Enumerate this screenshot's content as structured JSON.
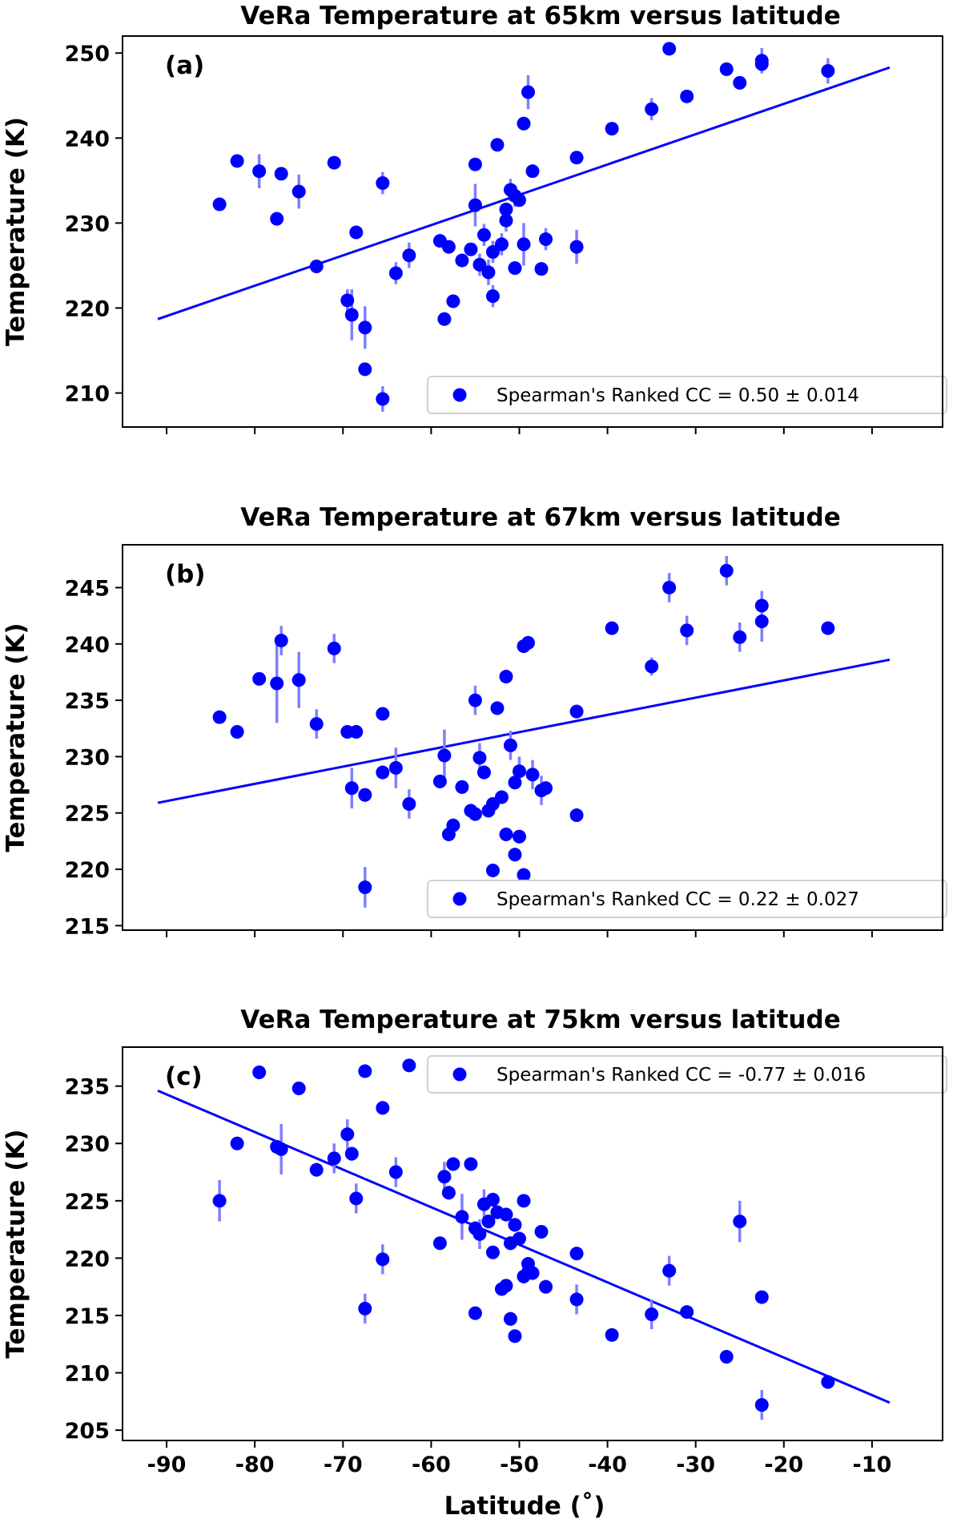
{
  "chart_data": [
    {
      "type": "scatter",
      "panel_label": "(a)",
      "title": "VeRa Temperature at 65km versus latitude",
      "xlabel": "Latitude (˚)",
      "ylabel": "Temperature (K)",
      "xlim": [
        -95,
        -2
      ],
      "ylim": [
        206,
        252
      ],
      "yticks": [
        210,
        220,
        230,
        240,
        250
      ],
      "legend": {
        "text": "Spearman's Ranked CC =  0.50 ±  0.014",
        "position": "lower-right"
      },
      "fit_line": {
        "x": [
          -91,
          -8
        ],
        "y": [
          218.7,
          248.3
        ]
      },
      "points": [
        {
          "x": -84,
          "y": 232.2,
          "err": 0
        },
        {
          "x": -82,
          "y": 237.3,
          "err": 0.5
        },
        {
          "x": -79.5,
          "y": 236.1,
          "err": 2
        },
        {
          "x": -77.5,
          "y": 230.5,
          "err": 0.5
        },
        {
          "x": -77,
          "y": 235.8,
          "err": 0.5
        },
        {
          "x": -75,
          "y": 233.7,
          "err": 2
        },
        {
          "x": -73,
          "y": 224.9,
          "err": 0.5
        },
        {
          "x": -71,
          "y": 237.1,
          "err": 0.5
        },
        {
          "x": -69.5,
          "y": 220.9,
          "err": 1.3
        },
        {
          "x": -69,
          "y": 219.2,
          "err": 3
        },
        {
          "x": -68.5,
          "y": 228.9,
          "err": 0.5
        },
        {
          "x": -67.5,
          "y": 217.7,
          "err": 2.5
        },
        {
          "x": -67.5,
          "y": 212.8,
          "err": 0.5
        },
        {
          "x": -65.5,
          "y": 234.7,
          "err": 1.3
        },
        {
          "x": -65.5,
          "y": 209.3,
          "err": 1.5
        },
        {
          "x": -64,
          "y": 224.1,
          "err": 1.3
        },
        {
          "x": -62.5,
          "y": 226.2,
          "err": 1.5
        },
        {
          "x": -59,
          "y": 227.9,
          "err": 0.5
        },
        {
          "x": -58.5,
          "y": 218.7,
          "err": 0.5
        },
        {
          "x": -58,
          "y": 227.2,
          "err": 0.5
        },
        {
          "x": -57.5,
          "y": 220.8,
          "err": 0.5
        },
        {
          "x": -56.5,
          "y": 225.6,
          "err": 0.5
        },
        {
          "x": -55.5,
          "y": 226.9,
          "err": 0.5
        },
        {
          "x": -55,
          "y": 236.9,
          "err": 0.5
        },
        {
          "x": -55,
          "y": 232.1,
          "err": 2.5
        },
        {
          "x": -54.5,
          "y": 225.1,
          "err": 1.3
        },
        {
          "x": -54,
          "y": 228.6,
          "err": 1.3
        },
        {
          "x": -53.5,
          "y": 224.2,
          "err": 1.5
        },
        {
          "x": -53,
          "y": 226.6,
          "err": 1.3
        },
        {
          "x": -53,
          "y": 221.4,
          "err": 1.3
        },
        {
          "x": -52.5,
          "y": 239.2,
          "err": 0.5
        },
        {
          "x": -52,
          "y": 227.5,
          "err": 1.3
        },
        {
          "x": -51.5,
          "y": 230.3,
          "err": 1.3
        },
        {
          "x": -51.5,
          "y": 231.6,
          "err": 0.5
        },
        {
          "x": -51,
          "y": 233.9,
          "err": 1.3
        },
        {
          "x": -50.5,
          "y": 233.2,
          "err": 1.3
        },
        {
          "x": -50.5,
          "y": 224.7,
          "err": 0.5
        },
        {
          "x": -50,
          "y": 232.7,
          "err": 0.5
        },
        {
          "x": -49.5,
          "y": 241.7,
          "err": 0.5
        },
        {
          "x": -49.5,
          "y": 227.5,
          "err": 2.5
        },
        {
          "x": -49,
          "y": 245.4,
          "err": 2
        },
        {
          "x": -48.5,
          "y": 236.1,
          "err": 0.5
        },
        {
          "x": -47.5,
          "y": 224.6,
          "err": 0.5
        },
        {
          "x": -47,
          "y": 228.1,
          "err": 1.3
        },
        {
          "x": -43.5,
          "y": 237.7,
          "err": 0.5
        },
        {
          "x": -43.5,
          "y": 227.2,
          "err": 2
        },
        {
          "x": -39.5,
          "y": 241.1,
          "err": 0.5
        },
        {
          "x": -35,
          "y": 243.4,
          "err": 1.3
        },
        {
          "x": -33,
          "y": 250.5,
          "err": 0.5
        },
        {
          "x": -31,
          "y": 244.9,
          "err": 0.5
        },
        {
          "x": -26.5,
          "y": 248.1,
          "err": 0.5
        },
        {
          "x": -25,
          "y": 246.5,
          "err": 0.5
        },
        {
          "x": -22.5,
          "y": 249.1,
          "err": 1.5
        },
        {
          "x": -22.5,
          "y": 248.7,
          "err": 0.5
        },
        {
          "x": -15,
          "y": 247.9,
          "err": 1.5
        }
      ]
    },
    {
      "type": "scatter",
      "panel_label": "(b)",
      "title": "VeRa Temperature at 67km versus latitude",
      "xlabel": "Latitude (˚)",
      "ylabel": "Temperature (K)",
      "xlim": [
        -95,
        -2
      ],
      "ylim": [
        214.6,
        248.8
      ],
      "yticks": [
        215,
        220,
        225,
        230,
        235,
        240,
        245
      ],
      "legend": {
        "text": "Spearman's Ranked CC =  0.22 ±  0.027",
        "position": "lower-right"
      },
      "fit_line": {
        "x": [
          -91,
          -8
        ],
        "y": [
          225.9,
          238.6
        ]
      },
      "points": [
        {
          "x": -84,
          "y": 233.5,
          "err": 0
        },
        {
          "x": -82,
          "y": 232.2,
          "err": 0
        },
        {
          "x": -79.5,
          "y": 236.9,
          "err": 0
        },
        {
          "x": -77.5,
          "y": 236.5,
          "err": 3.5
        },
        {
          "x": -77,
          "y": 240.3,
          "err": 1.3
        },
        {
          "x": -75,
          "y": 236.8,
          "err": 2.5
        },
        {
          "x": -73,
          "y": 232.9,
          "err": 1.3
        },
        {
          "x": -71,
          "y": 239.6,
          "err": 1.3
        },
        {
          "x": -69.5,
          "y": 232.2,
          "err": 0
        },
        {
          "x": -69,
          "y": 227.2,
          "err": 1.8
        },
        {
          "x": -68.5,
          "y": 232.2,
          "err": 0.6
        },
        {
          "x": -67.5,
          "y": 226.6,
          "err": 0.6
        },
        {
          "x": -67.5,
          "y": 218.4,
          "err": 1.8
        },
        {
          "x": -65.5,
          "y": 233.8,
          "err": 0
        },
        {
          "x": -65.5,
          "y": 228.6,
          "err": 0.6
        },
        {
          "x": -64,
          "y": 229.0,
          "err": 1.8
        },
        {
          "x": -62.5,
          "y": 225.8,
          "err": 1.3
        },
        {
          "x": -59,
          "y": 227.8,
          "err": 0.6
        },
        {
          "x": -58.5,
          "y": 230.1,
          "err": 2.3
        },
        {
          "x": -58,
          "y": 223.1,
          "err": 0.6
        },
        {
          "x": -57.5,
          "y": 223.9,
          "err": 0.6
        },
        {
          "x": -56.5,
          "y": 227.3,
          "err": 0.6
        },
        {
          "x": -55.5,
          "y": 225.2,
          "err": 0.6
        },
        {
          "x": -55,
          "y": 235.0,
          "err": 1.3
        },
        {
          "x": -55,
          "y": 224.9,
          "err": 0.6
        },
        {
          "x": -54.5,
          "y": 229.9,
          "err": 1.3
        },
        {
          "x": -54,
          "y": 228.6,
          "err": 0.6
        },
        {
          "x": -53.5,
          "y": 225.2,
          "err": 0.6
        },
        {
          "x": -53,
          "y": 225.8,
          "err": 0.6
        },
        {
          "x": -53,
          "y": 219.9,
          "err": 0.6
        },
        {
          "x": -52.5,
          "y": 234.3,
          "err": 0.6
        },
        {
          "x": -52,
          "y": 226.4,
          "err": 0.6
        },
        {
          "x": -51.5,
          "y": 223.1,
          "err": 0.6
        },
        {
          "x": -51.5,
          "y": 237.1,
          "err": 0.6
        },
        {
          "x": -51,
          "y": 231.0,
          "err": 1.3
        },
        {
          "x": -50.5,
          "y": 227.7,
          "err": 0.6
        },
        {
          "x": -50.5,
          "y": 221.3,
          "err": 0.6
        },
        {
          "x": -50,
          "y": 228.7,
          "err": 1.3
        },
        {
          "x": -50,
          "y": 222.9,
          "err": 0.6
        },
        {
          "x": -49.5,
          "y": 239.8,
          "err": 0.6
        },
        {
          "x": -49.5,
          "y": 219.5,
          "err": 0.6
        },
        {
          "x": -49,
          "y": 240.1,
          "err": 0.6
        },
        {
          "x": -48.5,
          "y": 228.4,
          "err": 1.3
        },
        {
          "x": -47.5,
          "y": 227.0,
          "err": 1.3
        },
        {
          "x": -47,
          "y": 227.2,
          "err": 0.6
        },
        {
          "x": -43.5,
          "y": 234.0,
          "err": 0.6
        },
        {
          "x": -43.5,
          "y": 224.8,
          "err": 0.6
        },
        {
          "x": -39.5,
          "y": 241.4,
          "err": 0.6
        },
        {
          "x": -35,
          "y": 238.0,
          "err": 0.8
        },
        {
          "x": -33,
          "y": 245.0,
          "err": 1.3
        },
        {
          "x": -31,
          "y": 241.2,
          "err": 1.3
        },
        {
          "x": -26.5,
          "y": 246.5,
          "err": 1.3
        },
        {
          "x": -25,
          "y": 240.6,
          "err": 1.3
        },
        {
          "x": -22.5,
          "y": 243.4,
          "err": 1.3
        },
        {
          "x": -22.5,
          "y": 242.0,
          "err": 1.8
        },
        {
          "x": -15,
          "y": 241.4,
          "err": 0.6
        }
      ]
    },
    {
      "type": "scatter",
      "panel_label": "(c)",
      "title": "VeRa Temperature at 75km versus latitude",
      "xlabel": "Latitude (˚)",
      "ylabel": "Temperature (K)",
      "xlim": [
        -95,
        -2
      ],
      "ylim": [
        204.1,
        238.4
      ],
      "yticks": [
        205,
        210,
        215,
        220,
        225,
        230,
        235
      ],
      "xticks": [
        -90,
        -80,
        -70,
        -60,
        -50,
        -40,
        -30,
        -20,
        -10
      ],
      "legend": {
        "text": "Spearman's Ranked CC = -0.77 ±  0.016",
        "position": "top-right"
      },
      "fit_line": {
        "x": [
          -91,
          -8
        ],
        "y": [
          234.6,
          207.4
        ]
      },
      "points": [
        {
          "x": -84,
          "y": 225.0,
          "err": 1.8
        },
        {
          "x": -82,
          "y": 230.0,
          "err": 0
        },
        {
          "x": -79.5,
          "y": 236.2,
          "err": 0.6
        },
        {
          "x": -77.5,
          "y": 229.7,
          "err": 0.6
        },
        {
          "x": -77,
          "y": 229.5,
          "err": 2.2
        },
        {
          "x": -75,
          "y": 234.8,
          "err": 0
        },
        {
          "x": -73,
          "y": 227.7,
          "err": 0.6
        },
        {
          "x": -71,
          "y": 228.7,
          "err": 1.3
        },
        {
          "x": -69.5,
          "y": 230.8,
          "err": 1.3
        },
        {
          "x": -69,
          "y": 229.1,
          "err": 0.6
        },
        {
          "x": -68.5,
          "y": 225.2,
          "err": 1.3
        },
        {
          "x": -67.5,
          "y": 236.3,
          "err": 0
        },
        {
          "x": -67.5,
          "y": 215.6,
          "err": 1.3
        },
        {
          "x": -65.5,
          "y": 233.1,
          "err": 0.6
        },
        {
          "x": -65.5,
          "y": 219.9,
          "err": 1.3
        },
        {
          "x": -64,
          "y": 227.5,
          "err": 1.3
        },
        {
          "x": -62.5,
          "y": 236.8,
          "err": 0
        },
        {
          "x": -59,
          "y": 221.3,
          "err": 0
        },
        {
          "x": -58.5,
          "y": 227.1,
          "err": 1.3
        },
        {
          "x": -58,
          "y": 225.7,
          "err": 0.6
        },
        {
          "x": -57.5,
          "y": 228.2,
          "err": 0
        },
        {
          "x": -56.5,
          "y": 223.6,
          "err": 2.0
        },
        {
          "x": -55.5,
          "y": 228.2,
          "err": 0
        },
        {
          "x": -55,
          "y": 222.6,
          "err": 0.6
        },
        {
          "x": -55,
          "y": 215.2,
          "err": 0
        },
        {
          "x": -54.5,
          "y": 222.1,
          "err": 1.3
        },
        {
          "x": -54,
          "y": 224.7,
          "err": 1.3
        },
        {
          "x": -53.5,
          "y": 223.2,
          "err": 0.6
        },
        {
          "x": -53,
          "y": 225.1,
          "err": 0.6
        },
        {
          "x": -53,
          "y": 220.5,
          "err": 0
        },
        {
          "x": -52.5,
          "y": 224.0,
          "err": 0.6
        },
        {
          "x": -52,
          "y": 217.3,
          "err": 0
        },
        {
          "x": -51.5,
          "y": 217.6,
          "err": 0
        },
        {
          "x": -51.5,
          "y": 223.8,
          "err": 0.6
        },
        {
          "x": -51,
          "y": 221.3,
          "err": 0.6
        },
        {
          "x": -51,
          "y": 214.7,
          "err": 0.6
        },
        {
          "x": -50.5,
          "y": 222.9,
          "err": 0.6
        },
        {
          "x": -50.5,
          "y": 213.2,
          "err": 0
        },
        {
          "x": -50,
          "y": 221.7,
          "err": 0
        },
        {
          "x": -49.5,
          "y": 225.0,
          "err": 0
        },
        {
          "x": -49.5,
          "y": 218.4,
          "err": 0.6
        },
        {
          "x": -49,
          "y": 219.5,
          "err": 0.6
        },
        {
          "x": -49,
          "y": 218.8,
          "err": 0.6
        },
        {
          "x": -48.5,
          "y": 218.7,
          "err": 0.6
        },
        {
          "x": -47.5,
          "y": 222.3,
          "err": 0
        },
        {
          "x": -47,
          "y": 217.5,
          "err": 0.6
        },
        {
          "x": -43.5,
          "y": 220.4,
          "err": 0
        },
        {
          "x": -43.5,
          "y": 216.4,
          "err": 1.3
        },
        {
          "x": -39.5,
          "y": 213.3,
          "err": 0
        },
        {
          "x": -35,
          "y": 215.1,
          "err": 1.3
        },
        {
          "x": -33,
          "y": 218.9,
          "err": 1.3
        },
        {
          "x": -31,
          "y": 215.3,
          "err": 0
        },
        {
          "x": -26.5,
          "y": 211.4,
          "err": 0
        },
        {
          "x": -25,
          "y": 223.2,
          "err": 1.8
        },
        {
          "x": -22.5,
          "y": 216.6,
          "err": 0
        },
        {
          "x": -22.5,
          "y": 207.2,
          "err": 1.3
        },
        {
          "x": -15,
          "y": 209.2,
          "err": 0.6
        }
      ]
    }
  ]
}
